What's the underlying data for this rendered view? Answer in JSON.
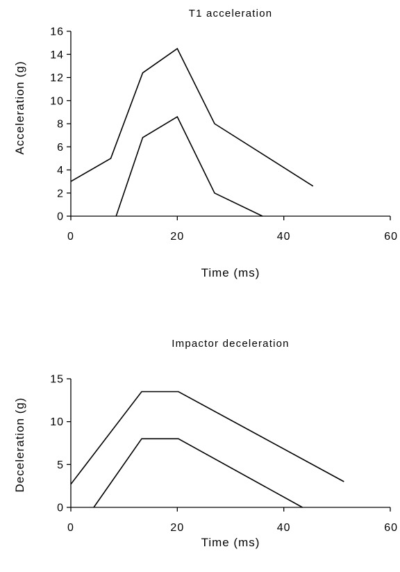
{
  "chart_data": [
    {
      "type": "line",
      "title": "T1 acceleration",
      "xlabel": "Time (ms)",
      "ylabel": "Acceleration (g)",
      "xlim": [
        0,
        60
      ],
      "ylim": [
        0,
        16
      ],
      "xticks": [
        0,
        20,
        40,
        60
      ],
      "yticks": [
        0,
        2,
        4,
        6,
        8,
        10,
        12,
        14,
        16
      ],
      "x_tick_labels": [
        "0",
        "20",
        "40",
        "60"
      ],
      "y_tick_labels": [
        "0",
        "2",
        "4",
        "6",
        "8",
        "10",
        "12",
        "14",
        "16"
      ],
      "grid": false,
      "line_color": "#000000",
      "series": [
        {
          "points": [
            [
              0,
              3.0
            ],
            [
              7.5,
              5.0
            ],
            [
              13.5,
              12.4
            ],
            [
              20,
              14.5
            ],
            [
              27,
              8.0
            ],
            [
              45.5,
              2.6
            ]
          ]
        },
        {
          "points": [
            [
              8.5,
              0.0
            ],
            [
              13.5,
              6.8
            ],
            [
              20,
              8.6
            ],
            [
              27,
              2.0
            ],
            [
              36,
              0.0
            ]
          ]
        }
      ]
    },
    {
      "type": "line",
      "title": "Impactor deceleration",
      "xlabel": "Time (ms)",
      "ylabel": "Deceleration (g)",
      "xlim": [
        0,
        60
      ],
      "ylim": [
        0,
        15
      ],
      "xticks": [
        0,
        20,
        40,
        60
      ],
      "yticks": [
        0,
        5,
        10,
        15
      ],
      "x_tick_labels": [
        "0",
        "20",
        "40",
        "60"
      ],
      "y_tick_labels": [
        "0",
        "5",
        "10",
        "15"
      ],
      "grid": false,
      "line_color": "#000000",
      "series": [
        {
          "points": [
            [
              0,
              2.7
            ],
            [
              13.3,
              13.5
            ],
            [
              20.2,
              13.5
            ],
            [
              51.3,
              3.0
            ]
          ]
        },
        {
          "points": [
            [
              4.3,
              0.0
            ],
            [
              13.3,
              8.0
            ],
            [
              20.2,
              8.0
            ],
            [
              43.5,
              0.0
            ]
          ]
        }
      ]
    }
  ]
}
